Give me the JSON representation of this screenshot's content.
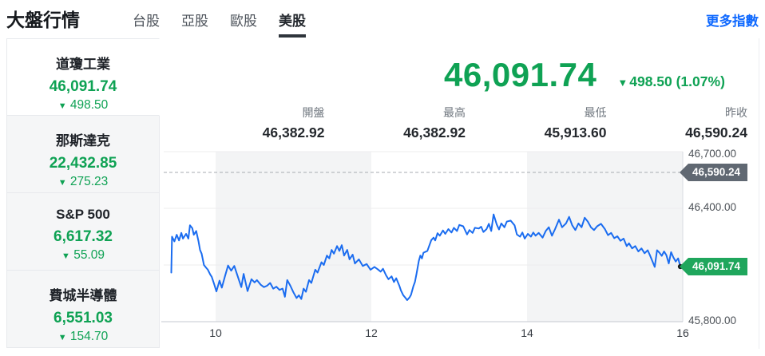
{
  "header": {
    "title": "大盤行情",
    "tabs": [
      {
        "label": "台股",
        "active": false
      },
      {
        "label": "亞股",
        "active": false
      },
      {
        "label": "歐股",
        "active": false
      },
      {
        "label": "美股",
        "active": true
      }
    ],
    "more_link": "更多指數"
  },
  "icons": {
    "down_arrow": "▼"
  },
  "sidebar": {
    "items": [
      {
        "name": "道瓊工業",
        "value": "46,091.74",
        "change": "498.50",
        "direction": "down",
        "selected": true
      },
      {
        "name": "那斯達克",
        "value": "22,432.85",
        "change": "275.23",
        "direction": "down",
        "selected": false
      },
      {
        "name": "S&P 500",
        "value": "6,617.32",
        "change": "55.09",
        "direction": "down",
        "selected": false
      },
      {
        "name": "費城半導體",
        "value": "6,551.03",
        "change": "154.70",
        "direction": "down",
        "selected": false
      }
    ]
  },
  "quote": {
    "price": "46,091.74",
    "change": "498.50 (1.07%)",
    "direction": "down",
    "stats": [
      {
        "label": "開盤",
        "value": "46,382.92"
      },
      {
        "label": "最高",
        "value": "46,382.92"
      },
      {
        "label": "最低",
        "value": "45,913.60"
      },
      {
        "label": "昨收",
        "value": "46,590.24"
      }
    ]
  },
  "colors": {
    "down_green": "#0fa254",
    "link_blue": "#0f69ff",
    "tab_underline": "#2e343b"
  },
  "chart_data": {
    "type": "line",
    "title": "道瓊工業 盤中走勢",
    "x_domain": [
      9.333,
      16
    ],
    "y_domain": [
      45800,
      46700
    ],
    "x_ticks": [
      {
        "t": 10,
        "label": "10"
      },
      {
        "t": 12,
        "label": "12"
      },
      {
        "t": 14,
        "label": "14"
      },
      {
        "t": 16,
        "label": "16"
      }
    ],
    "y_ticks": [
      {
        "v": 46700,
        "label": "46,700.00"
      },
      {
        "v": 46400,
        "label": "46,400.00"
      },
      {
        "v": 45800,
        "label": "45,800.00"
      }
    ],
    "y_gridlines": [
      46700,
      46400,
      46100
    ],
    "bands": [
      [
        10,
        12
      ],
      [
        14,
        16
      ]
    ],
    "prev_close": {
      "v": 46590.24,
      "label": "46,590.24"
    },
    "last": {
      "v": 46091.74,
      "label": "46,091.74"
    },
    "style": {
      "band": "#f3f4f5",
      "grid": "#ececee",
      "axis": "#c6cad0",
      "border": "#d9dce1",
      "dash": "#a7abb1",
      "line": "#1a6cf0",
      "dot": "#17191c"
    },
    "series": [
      {
        "name": "道瓊工業",
        "points": [
          [
            9.43,
            46060
          ],
          [
            9.44,
            46250
          ],
          [
            9.47,
            46225
          ],
          [
            9.5,
            46260
          ],
          [
            9.53,
            46230
          ],
          [
            9.56,
            46270
          ],
          [
            9.58,
            46240
          ],
          [
            9.62,
            46265
          ],
          [
            9.65,
            46240
          ],
          [
            9.67,
            46310
          ],
          [
            9.7,
            46295
          ],
          [
            9.72,
            46260
          ],
          [
            9.75,
            46280
          ],
          [
            9.78,
            46225
          ],
          [
            9.8,
            46180
          ],
          [
            9.82,
            46160
          ],
          [
            9.85,
            46100
          ],
          [
            9.88,
            46085
          ],
          [
            9.9,
            46075
          ],
          [
            9.93,
            46050
          ],
          [
            9.95,
            46037
          ],
          [
            9.98,
            46000
          ],
          [
            10.01,
            45960
          ],
          [
            10.05,
            46017
          ],
          [
            10.08,
            45980
          ],
          [
            10.12,
            46040
          ],
          [
            10.16,
            46097
          ],
          [
            10.2,
            46070
          ],
          [
            10.24,
            46095
          ],
          [
            10.28,
            46045
          ],
          [
            10.33,
            45983
          ],
          [
            10.36,
            46053
          ],
          [
            10.41,
            45962
          ],
          [
            10.46,
            46025
          ],
          [
            10.5,
            46008
          ],
          [
            10.53,
            46020
          ],
          [
            10.58,
            45995
          ],
          [
            10.62,
            45983
          ],
          [
            10.66,
            45990
          ],
          [
            10.7,
            46005
          ],
          [
            10.74,
            45975
          ],
          [
            10.78,
            45985
          ],
          [
            10.82,
            45968
          ],
          [
            10.86,
            45975
          ],
          [
            10.89,
            45932
          ],
          [
            10.92,
            46020
          ],
          [
            10.96,
            45990
          ],
          [
            11.0,
            45955
          ],
          [
            11.04,
            45925
          ],
          [
            11.07,
            45940
          ],
          [
            11.1,
            45920
          ],
          [
            11.13,
            45975
          ],
          [
            11.16,
            45958
          ],
          [
            11.2,
            46020
          ],
          [
            11.23,
            46005
          ],
          [
            11.28,
            46075
          ],
          [
            11.31,
            46060
          ],
          [
            11.36,
            46115
          ],
          [
            11.39,
            46100
          ],
          [
            11.43,
            46150
          ],
          [
            11.46,
            46135
          ],
          [
            11.49,
            46180
          ],
          [
            11.52,
            46160
          ],
          [
            11.56,
            46200
          ],
          [
            11.59,
            46175
          ],
          [
            11.62,
            46205
          ],
          [
            11.65,
            46150
          ],
          [
            11.69,
            46180
          ],
          [
            11.72,
            46130
          ],
          [
            11.76,
            46155
          ],
          [
            11.79,
            46108
          ],
          [
            11.84,
            46130
          ],
          [
            11.89,
            46095
          ],
          [
            11.94,
            46105
          ],
          [
            11.99,
            46075
          ],
          [
            12.04,
            46090
          ],
          [
            12.08,
            46078
          ],
          [
            12.12,
            46065
          ],
          [
            12.15,
            46080
          ],
          [
            12.19,
            46045
          ],
          [
            12.22,
            46025
          ],
          [
            12.26,
            46040
          ],
          [
            12.29,
            46010
          ],
          [
            12.32,
            46030
          ],
          [
            12.36,
            45990
          ],
          [
            12.38,
            45965
          ],
          [
            12.41,
            45940
          ],
          [
            12.44,
            45925
          ],
          [
            12.46,
            45914
          ],
          [
            12.49,
            45928
          ],
          [
            12.51,
            45942
          ],
          [
            12.54,
            45988
          ],
          [
            12.56,
            46010
          ],
          [
            12.58,
            46053
          ],
          [
            12.61,
            46122
          ],
          [
            12.63,
            46150
          ],
          [
            12.65,
            46135
          ],
          [
            12.67,
            46165
          ],
          [
            12.72,
            46175
          ],
          [
            12.77,
            46232
          ],
          [
            12.8,
            46245
          ],
          [
            12.82,
            46230
          ],
          [
            12.85,
            46268
          ],
          [
            12.88,
            46255
          ],
          [
            12.92,
            46283
          ],
          [
            12.95,
            46265
          ],
          [
            12.99,
            46290
          ],
          [
            13.03,
            46272
          ],
          [
            13.06,
            46297
          ],
          [
            13.1,
            46280
          ],
          [
            13.13,
            46312
          ],
          [
            13.18,
            46305
          ],
          [
            13.23,
            46262
          ],
          [
            13.26,
            46285
          ],
          [
            13.3,
            46270
          ],
          [
            13.33,
            46297
          ],
          [
            13.38,
            46293
          ],
          [
            13.41,
            46303
          ],
          [
            13.44,
            46275
          ],
          [
            13.48,
            46290
          ],
          [
            13.51,
            46318
          ],
          [
            13.54,
            46280
          ],
          [
            13.57,
            46368
          ],
          [
            13.61,
            46315
          ],
          [
            13.64,
            46288
          ],
          [
            13.67,
            46320
          ],
          [
            13.71,
            46300
          ],
          [
            13.74,
            46330
          ],
          [
            13.79,
            46335
          ],
          [
            13.84,
            46310
          ],
          [
            13.87,
            46262
          ],
          [
            13.91,
            46250
          ],
          [
            13.94,
            46272
          ],
          [
            13.97,
            46240
          ],
          [
            14.01,
            46265
          ],
          [
            14.05,
            46250
          ],
          [
            14.08,
            46272
          ],
          [
            14.11,
            46255
          ],
          [
            14.15,
            46270
          ],
          [
            14.2,
            46245
          ],
          [
            14.24,
            46280
          ],
          [
            14.28,
            46300
          ],
          [
            14.32,
            46255
          ],
          [
            14.36,
            46290
          ],
          [
            14.41,
            46340
          ],
          [
            14.45,
            46300
          ],
          [
            14.5,
            46320
          ],
          [
            14.54,
            46355
          ],
          [
            14.58,
            46310
          ],
          [
            14.62,
            46285
          ],
          [
            14.66,
            46320
          ],
          [
            14.7,
            46300
          ],
          [
            14.74,
            46350
          ],
          [
            14.78,
            46330
          ],
          [
            14.82,
            46300
          ],
          [
            14.86,
            46285
          ],
          [
            14.9,
            46305
          ],
          [
            14.95,
            46318
          ],
          [
            15.0,
            46290
          ],
          [
            15.04,
            46258
          ],
          [
            15.08,
            46270
          ],
          [
            15.12,
            46242
          ],
          [
            15.16,
            46252
          ],
          [
            15.2,
            46228
          ],
          [
            15.24,
            46240
          ],
          [
            15.28,
            46200
          ],
          [
            15.31,
            46215
          ],
          [
            15.35,
            46188
          ],
          [
            15.39,
            46200
          ],
          [
            15.43,
            46172
          ],
          [
            15.47,
            46188
          ],
          [
            15.51,
            46162
          ],
          [
            15.55,
            46178
          ],
          [
            15.58,
            46150
          ],
          [
            15.61,
            46120
          ],
          [
            15.64,
            46090
          ],
          [
            15.67,
            46178
          ],
          [
            15.7,
            46165
          ],
          [
            15.73,
            46148
          ],
          [
            15.76,
            46172
          ],
          [
            15.79,
            46152
          ],
          [
            15.82,
            46108
          ],
          [
            15.85,
            46168
          ],
          [
            15.88,
            46140
          ],
          [
            15.91,
            46118
          ],
          [
            15.94,
            46135
          ],
          [
            15.97,
            46091.74
          ]
        ]
      }
    ]
  }
}
